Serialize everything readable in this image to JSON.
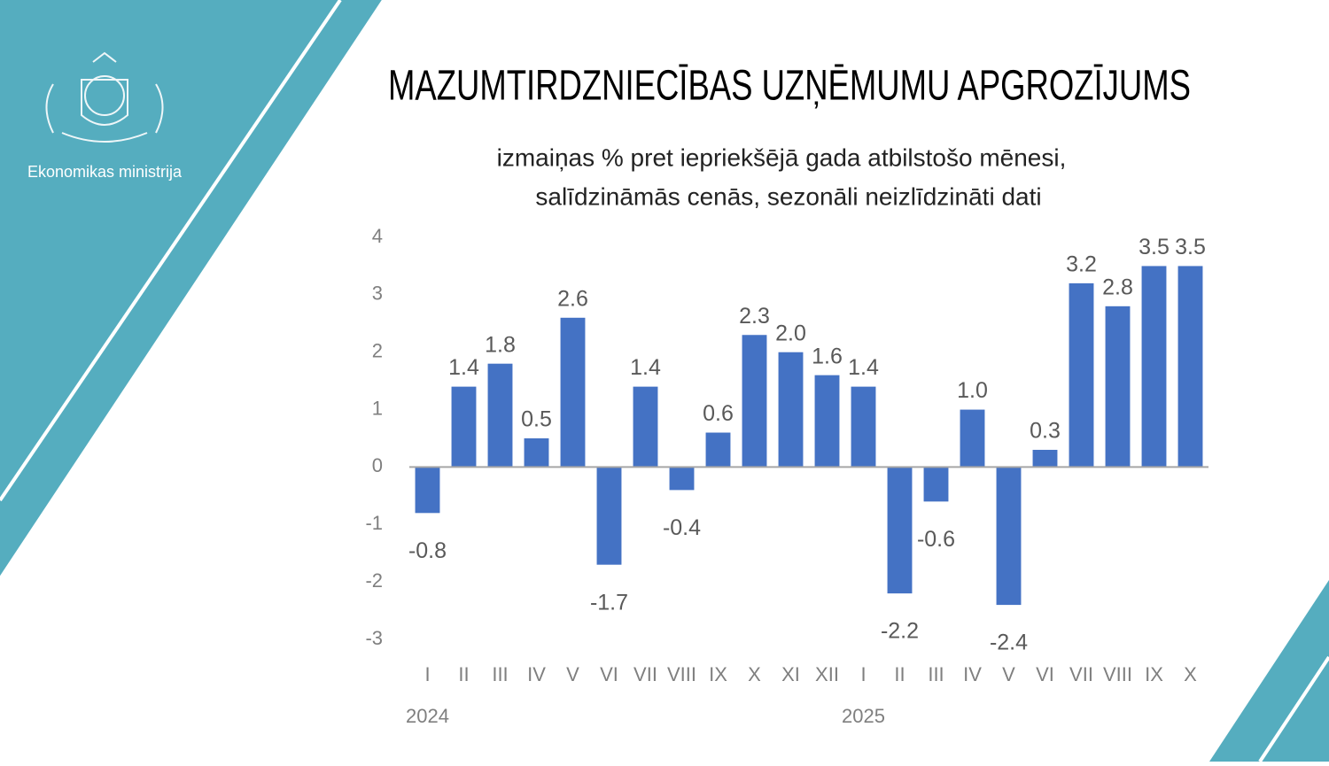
{
  "branding": {
    "organization": "Ekonomikas ministrija"
  },
  "chart_data": {
    "type": "bar",
    "title": "MAZUMTIRDZNIECĪBAS UZŅĒMUMU APGROZĪJUMS",
    "subtitle": [
      "izmaiņas % pret iepriekšējā gada atbilstošo mēnesi,",
      "salīdzināmās cenās, sezonāli neizlīdzināti dati"
    ],
    "categories": [
      "I",
      "II",
      "III",
      "IV",
      "V",
      "VI",
      "VII",
      "VIII",
      "IX",
      "X",
      "XI",
      "XII",
      "I",
      "II",
      "III",
      "IV",
      "V",
      "VI",
      "VII",
      "VIII",
      "IX",
      "X"
    ],
    "category_years": [
      "2024",
      null,
      null,
      null,
      null,
      null,
      null,
      null,
      null,
      null,
      null,
      null,
      "2025",
      null,
      null,
      null,
      null,
      null,
      null,
      null,
      null,
      null
    ],
    "values": [
      -0.8,
      1.4,
      1.8,
      0.5,
      2.6,
      -1.7,
      1.4,
      -0.4,
      0.6,
      2.3,
      2.0,
      1.6,
      1.4,
      -2.2,
      -0.6,
      1.0,
      -2.4,
      0.3,
      3.2,
      2.8,
      3.5,
      3.5
    ],
    "value_labels": [
      "-0.8",
      "1.4",
      "1.8",
      "0.5",
      "2.6",
      "-1.7",
      "1.4",
      "-0.4",
      "0.6",
      "2.3",
      "2.0",
      "1.6",
      "1.4",
      "-2.2",
      "-0.6",
      "1.0",
      "-2.4",
      "0.3",
      "3.2",
      "2.8",
      "3.5",
      "3.5"
    ],
    "color": "#4472c4",
    "ylim": [
      -3,
      4
    ],
    "yticks": [
      4,
      3,
      2,
      1,
      0,
      -1,
      -2,
      -3
    ],
    "grid": false
  }
}
